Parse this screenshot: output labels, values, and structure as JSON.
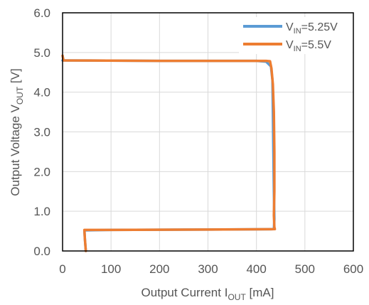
{
  "chart_data": {
    "type": "line",
    "xlabel": "Output Current I",
    "xlabel_sub": "OUT",
    "xlabel_unit": " [mA]",
    "ylabel": "Output Voltage V",
    "ylabel_sub": "OUT",
    "ylabel_unit": " [V]",
    "xlim": [
      0,
      600
    ],
    "ylim": [
      0,
      6
    ],
    "xticks": [
      0,
      100,
      200,
      300,
      400,
      500,
      600
    ],
    "yticks": [
      0,
      1,
      2,
      3,
      4,
      5,
      6
    ],
    "xtick_labels": [
      "0",
      "100",
      "200",
      "300",
      "400",
      "500",
      "600"
    ],
    "ytick_labels": [
      "0.0",
      "1.0",
      "2.0",
      "3.0",
      "4.0",
      "5.0",
      "6.0"
    ],
    "grid": true,
    "legend_position": "top-right",
    "series": [
      {
        "name_prefix": "V",
        "name_sub": "IN",
        "name_suffix": "=5.25V",
        "color": "#5b9bd5",
        "points": [
          [
            0,
            4.8
          ],
          [
            200,
            4.79
          ],
          [
            400,
            4.79
          ],
          [
            420,
            4.77
          ],
          [
            430,
            4.65
          ],
          [
            433,
            4.3
          ],
          [
            434,
            3.5
          ],
          [
            435,
            2.5
          ],
          [
            436,
            1.5
          ],
          [
            437,
            0.8
          ],
          [
            436,
            0.55
          ],
          [
            300,
            0.54
          ],
          [
            100,
            0.53
          ],
          [
            45,
            0.52
          ],
          [
            46,
            0.3
          ],
          [
            48,
            0.0
          ]
        ]
      },
      {
        "name_prefix": "V",
        "name_sub": "IN",
        "name_suffix": "=5.5V",
        "color": "#ed7d31",
        "points": [
          [
            0,
            4.92
          ],
          [
            2,
            4.8
          ],
          [
            200,
            4.79
          ],
          [
            420,
            4.79
          ],
          [
            428,
            4.78
          ],
          [
            431,
            4.6
          ],
          [
            434,
            4.2
          ],
          [
            436,
            3.5
          ],
          [
            437,
            2.5
          ],
          [
            437,
            1.5
          ],
          [
            436,
            0.9
          ],
          [
            437,
            0.6
          ],
          [
            438,
            0.55
          ],
          [
            300,
            0.54
          ],
          [
            100,
            0.53
          ],
          [
            45,
            0.53
          ],
          [
            46,
            0.3
          ],
          [
            48,
            0.0
          ]
        ]
      }
    ]
  }
}
